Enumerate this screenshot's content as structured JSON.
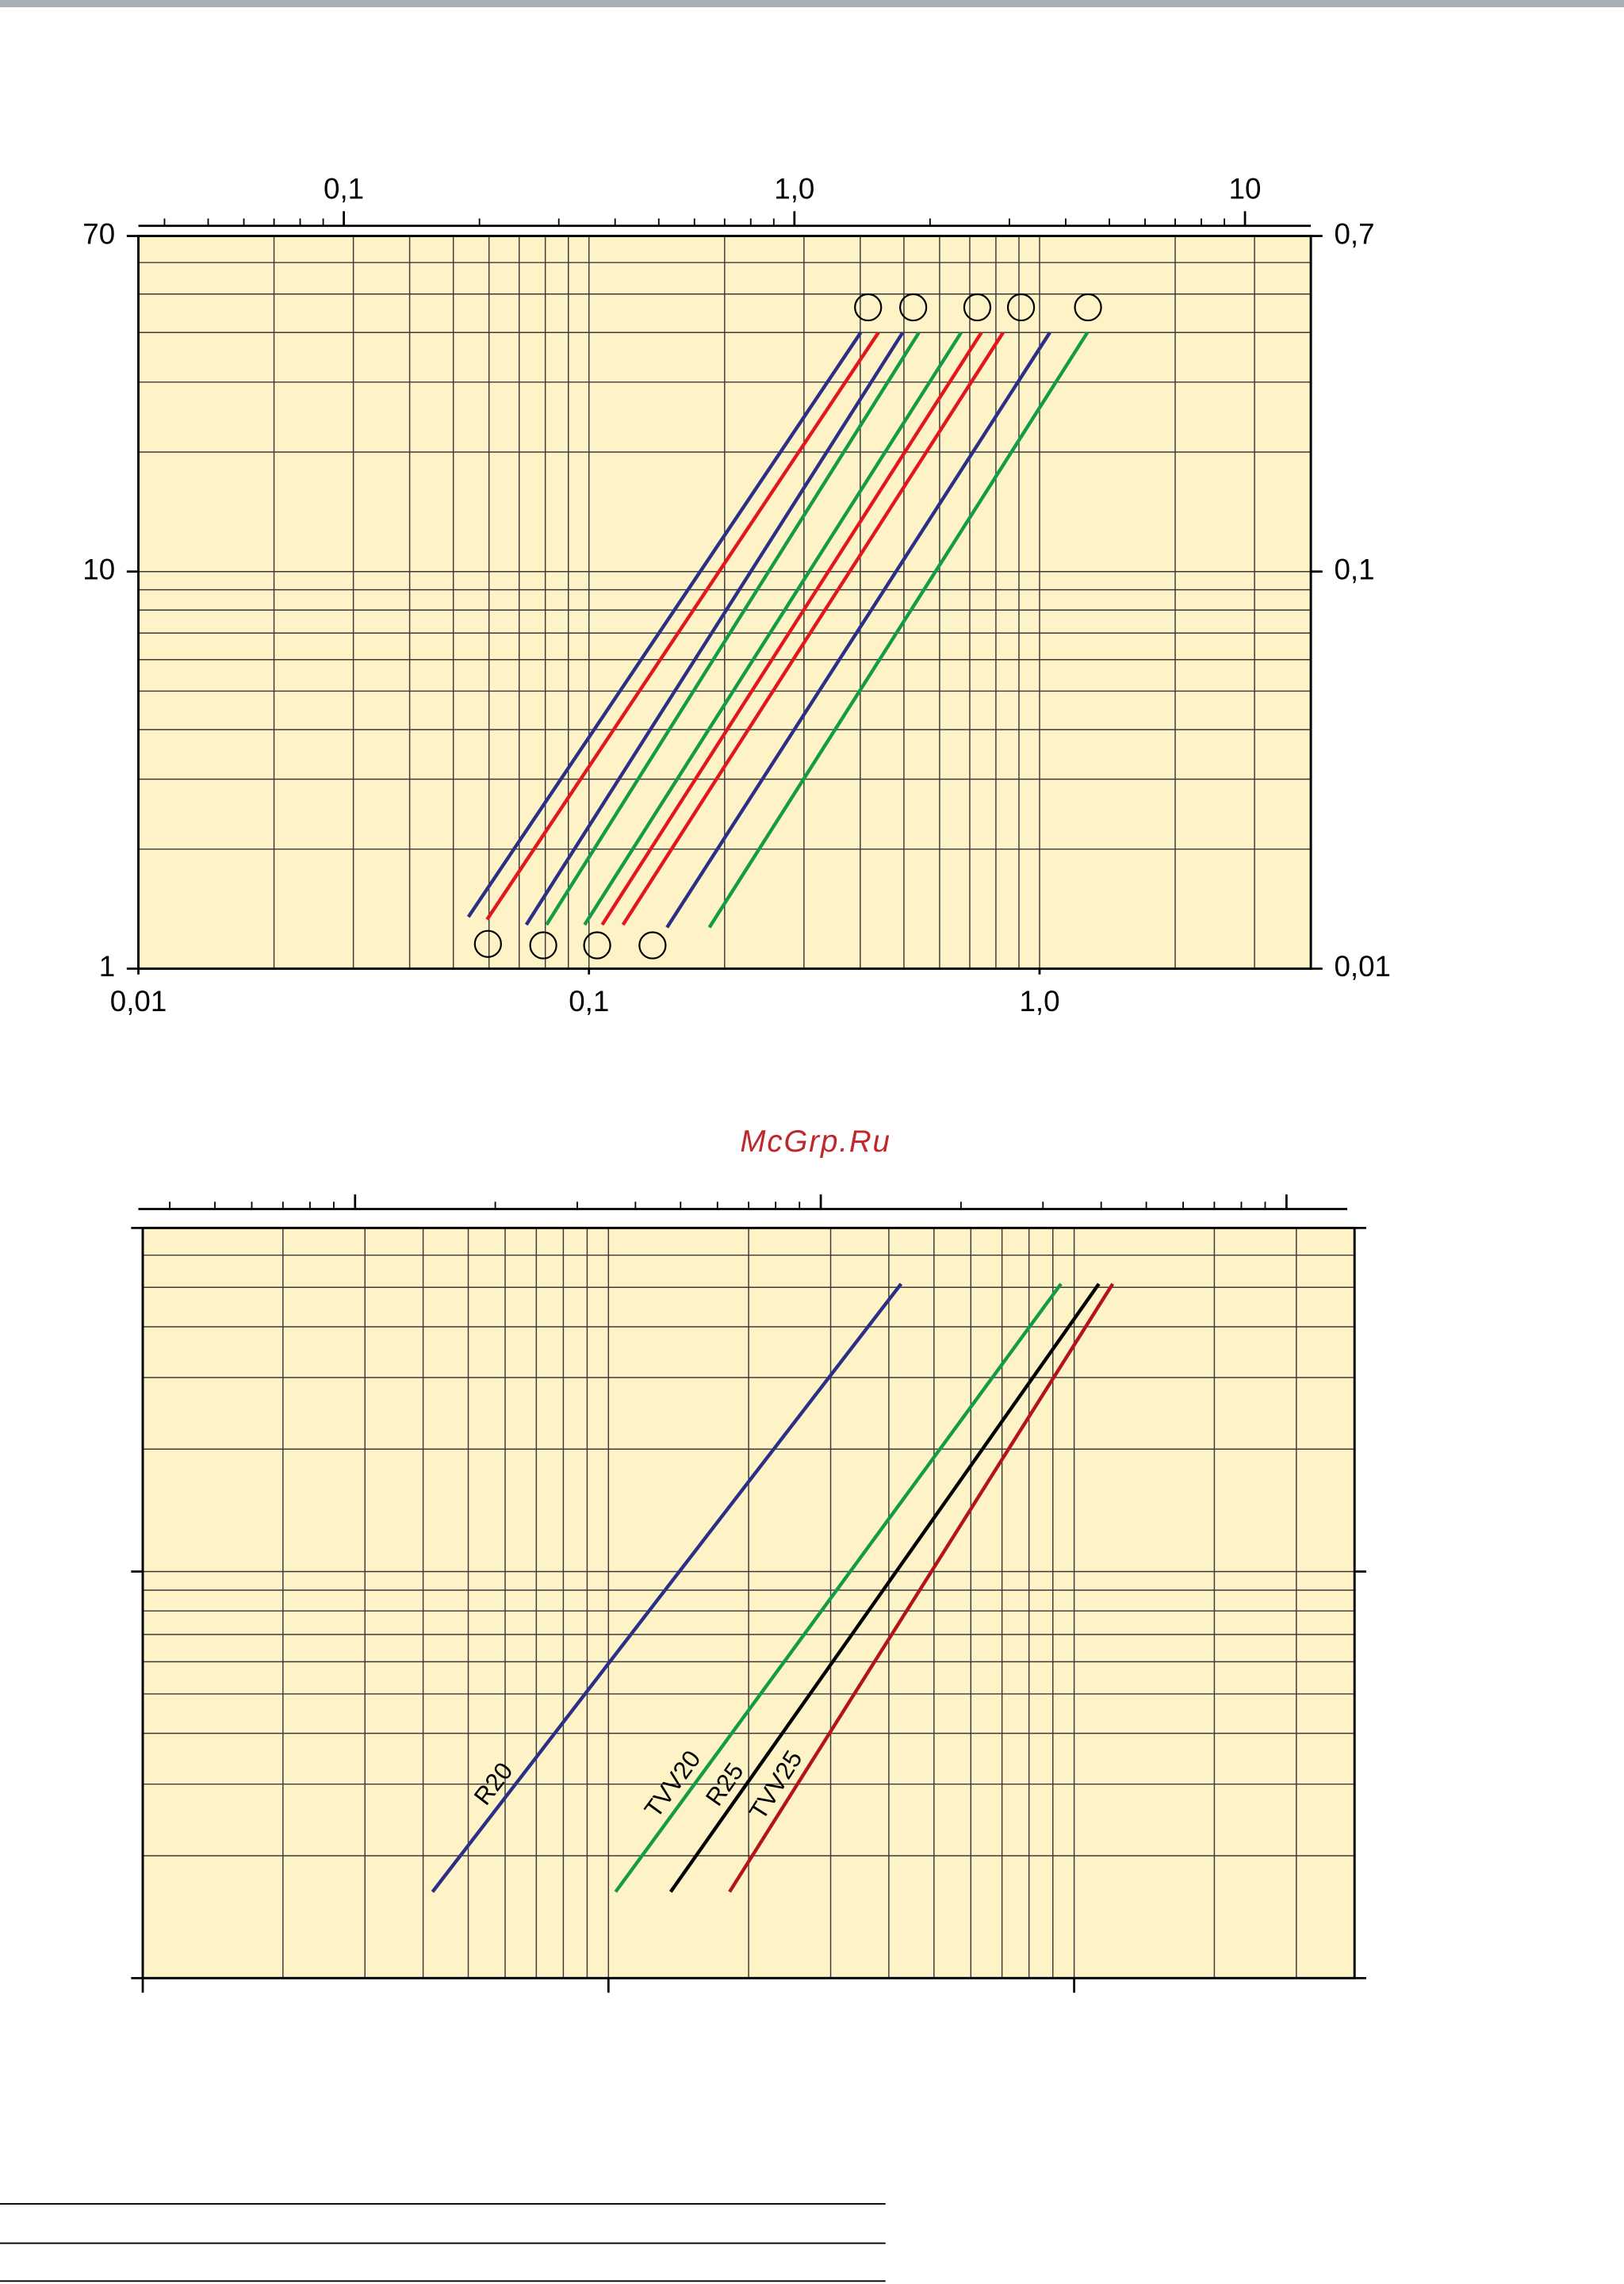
{
  "watermark": "McGrp.Ru",
  "chart_data": [
    {
      "type": "line",
      "log_x": true,
      "log_y": true,
      "grid": true,
      "xlim": [
        0.01,
        4
      ],
      "ylim": [
        1,
        70
      ],
      "x2lim": [
        0.035,
        14
      ],
      "y2lim": [
        0.01,
        0.7
      ],
      "xticks": [
        {
          "value": 0.01,
          "label": "0,01"
        },
        {
          "value": 0.1,
          "label": "0,1"
        },
        {
          "value": 1,
          "label": "1,0"
        }
      ],
      "yticks": [
        1,
        10,
        70
      ],
      "x2ticks": [
        {
          "value": 0.1,
          "label": "0,1"
        },
        {
          "value": 1,
          "label": "1,0"
        },
        10
      ],
      "y2ticks": [
        {
          "value": 0.01,
          "label": "0,01"
        },
        {
          "value": 0.1,
          "label": "0,1"
        },
        {
          "value": 0.7,
          "label": "0,7"
        }
      ],
      "series": [
        {
          "color": "#2b2f86",
          "x": [
            0.054,
            0.401
          ],
          "values": [
            1.35,
            40
          ]
        },
        {
          "color": "#e3161e",
          "x": [
            0.0594,
            0.439
          ],
          "values": [
            1.33,
            40
          ]
        },
        {
          "color": "#2b2f86",
          "x": [
            0.0726,
            0.497
          ],
          "values": [
            1.29,
            40
          ]
        },
        {
          "color": "#139c45",
          "x": [
            0.0805,
            0.54
          ],
          "values": [
            1.29,
            40
          ]
        },
        {
          "color": "#139c45",
          "x": [
            0.0978,
            0.67
          ],
          "values": [
            1.29,
            40
          ]
        },
        {
          "color": "#e3161e",
          "x": [
            0.107,
            0.743
          ],
          "values": [
            1.29,
            40
          ]
        },
        {
          "color": "#e3161e",
          "x": [
            0.119,
            0.83
          ],
          "values": [
            1.29,
            40
          ]
        },
        {
          "color": "#2b2f86",
          "x": [
            0.149,
            1.054
          ],
          "values": [
            1.27,
            40
          ]
        },
        {
          "color": "#139c45",
          "x": [
            0.185,
            1.277
          ],
          "values": [
            1.27,
            40
          ]
        }
      ]
    },
    {
      "type": "line",
      "log_x": true,
      "log_y": true,
      "grid": true,
      "tick_labels": false,
      "xlim": [
        0.01,
        4
      ],
      "ylim": [
        1,
        70
      ],
      "x2lim": [
        0.035,
        14
      ],
      "xticks": [
        0.01,
        0.1,
        1
      ],
      "yticks": [
        1,
        10,
        70
      ],
      "x2ticks": [
        0.1,
        1,
        10
      ],
      "series": [
        {
          "name": "R20",
          "color": "#2b2f86",
          "x": [
            0.0419,
            0.425
          ],
          "values": [
            1.63,
            51
          ]
        },
        {
          "name": "TVV20",
          "color": "#139c45",
          "x": [
            0.1036,
            0.937
          ],
          "values": [
            1.63,
            51
          ]
        },
        {
          "name": "R25",
          "color": "#000000",
          "x": [
            0.136,
            1.13
          ],
          "values": [
            1.63,
            51
          ]
        },
        {
          "name": "TVV25",
          "color": "#b3141b",
          "x": [
            0.182,
            1.21
          ],
          "values": [
            1.63,
            51
          ]
        }
      ]
    }
  ]
}
